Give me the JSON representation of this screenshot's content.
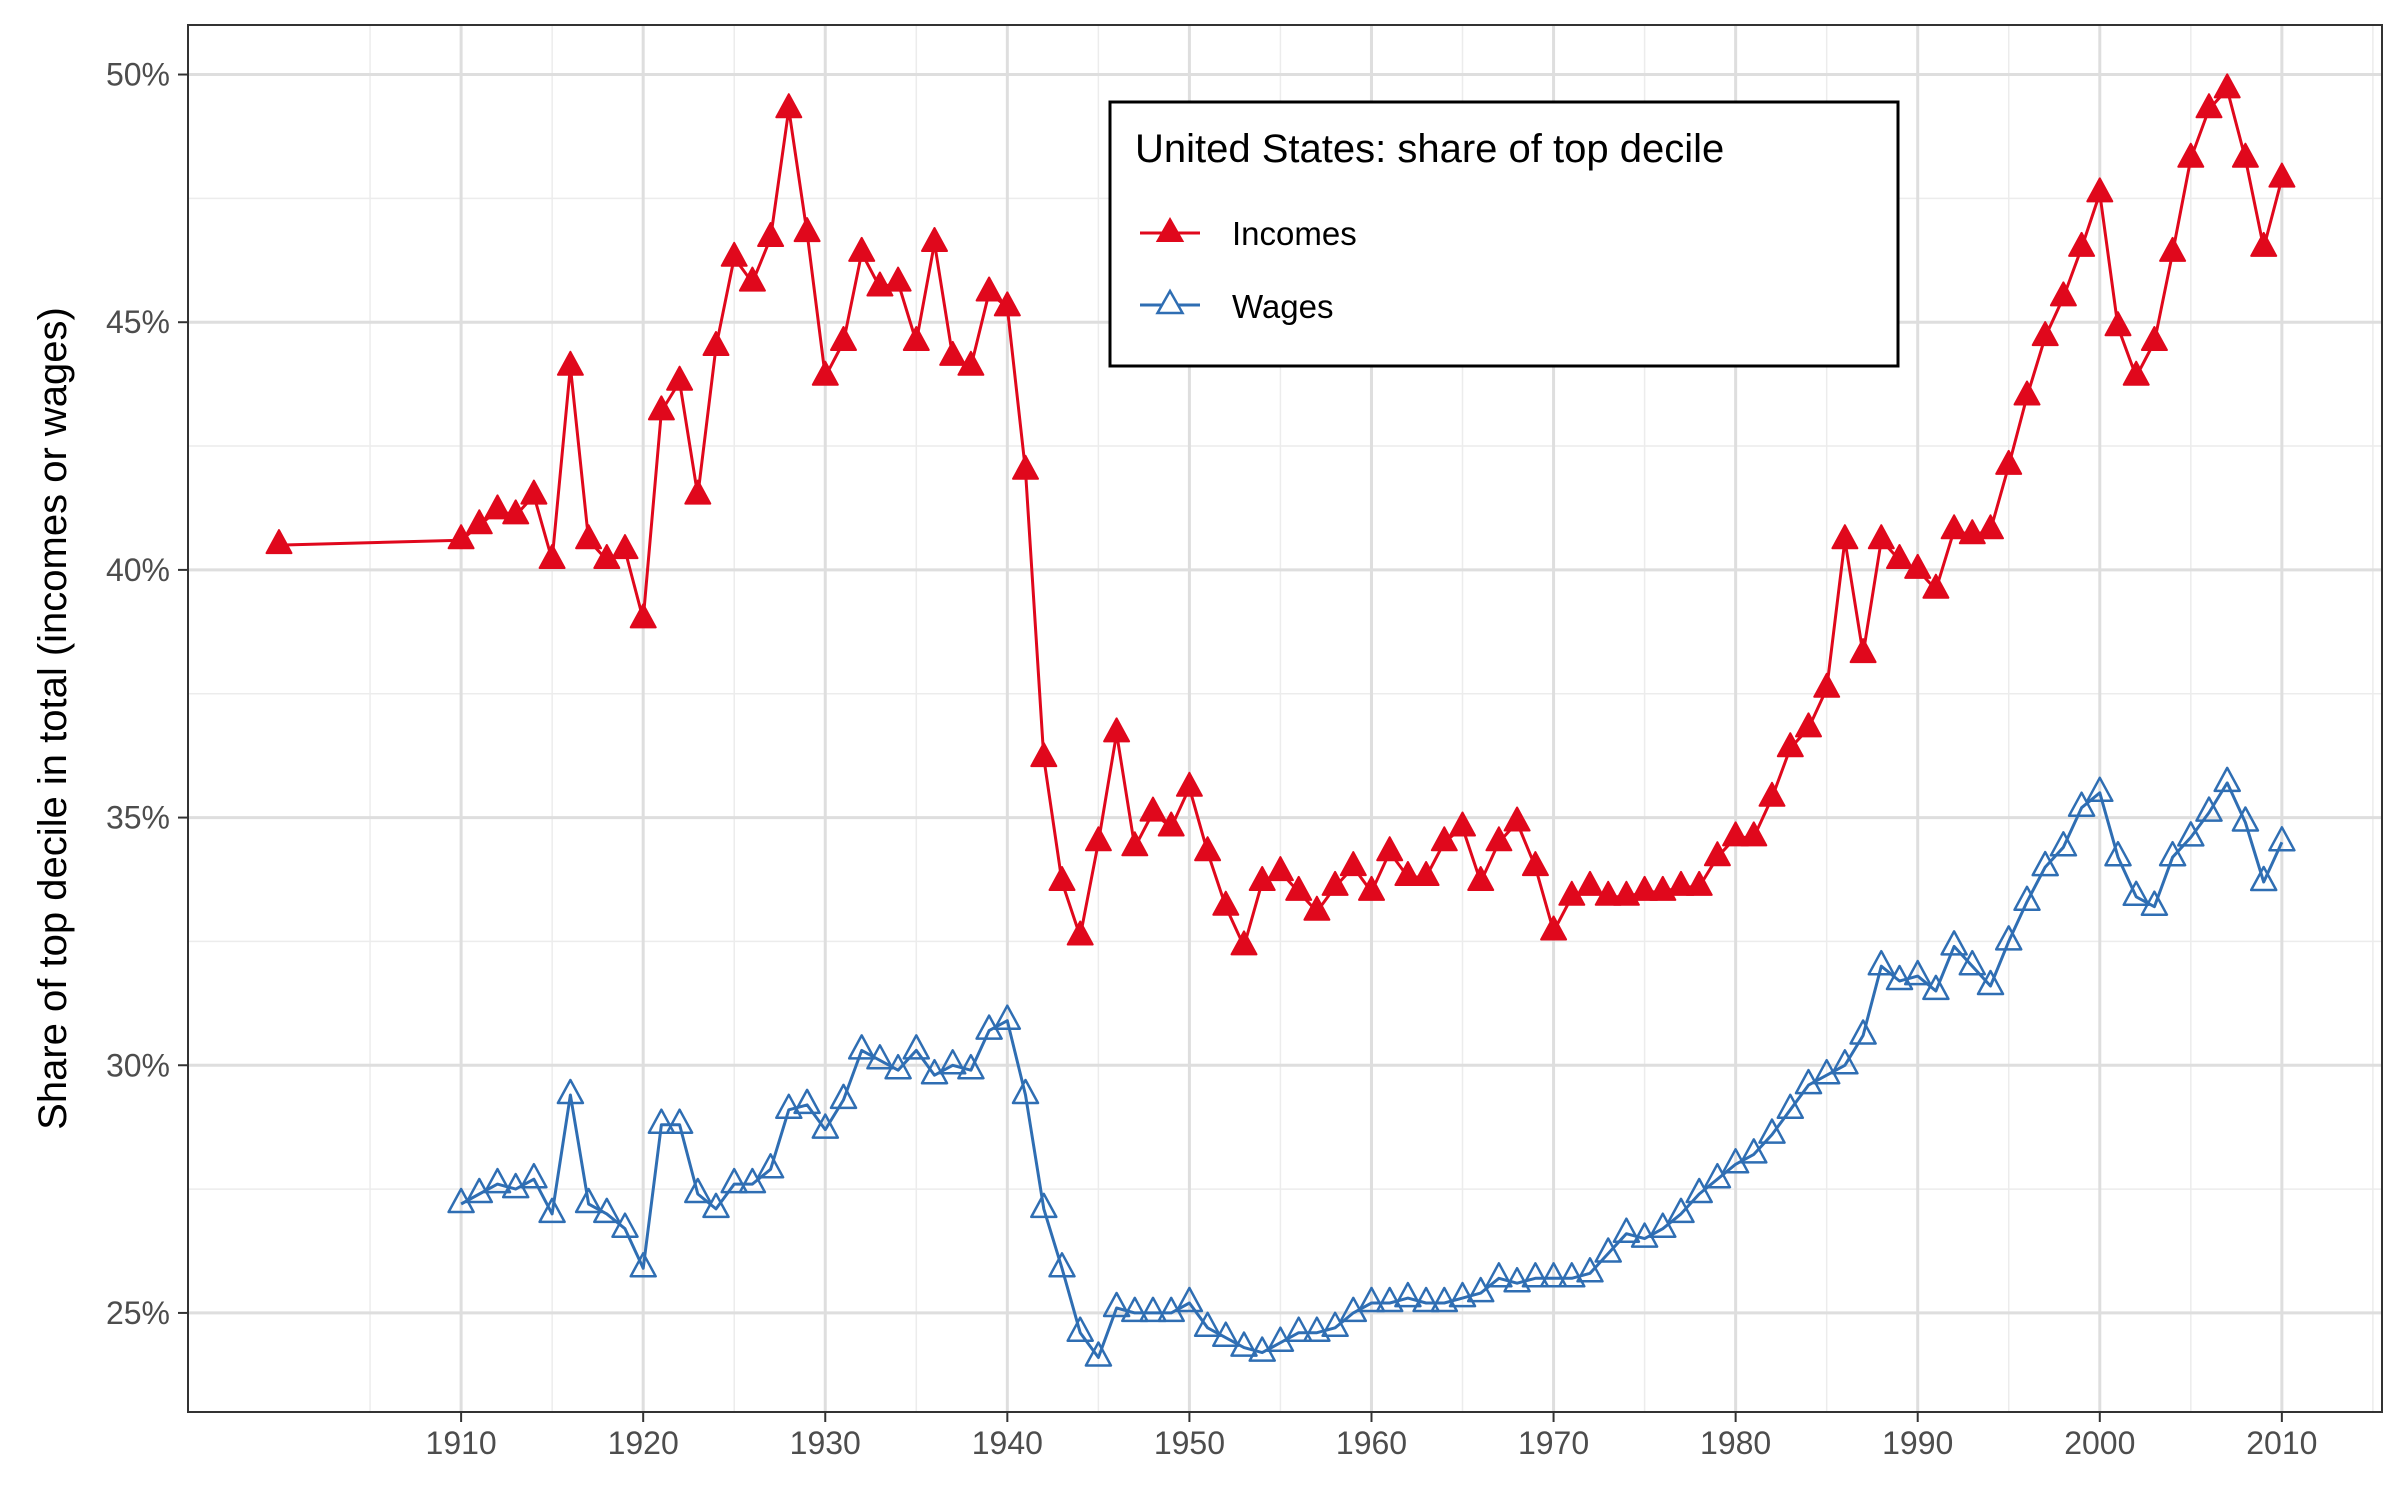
{
  "chart_data": {
    "type": "line",
    "title": "",
    "xlabel": "",
    "ylabel": "Share of top decile in total (incomes or wages)",
    "x_ticks": [
      1910,
      1920,
      1930,
      1940,
      1950,
      1960,
      1970,
      1980,
      1990,
      2000,
      2010
    ],
    "x_tick_labels": [
      "1910",
      "1920",
      "1930",
      "1940",
      "1950",
      "1960",
      "1970",
      "1980",
      "1990",
      "2000",
      "2010"
    ],
    "y_ticks": [
      25,
      30,
      35,
      40,
      45,
      50
    ],
    "y_tick_labels": [
      "25%",
      "30%",
      "35%",
      "40%",
      "45%",
      "50%"
    ],
    "xlim": [
      1895,
      2015.5
    ],
    "ylim": [
      23,
      51
    ],
    "grid": true,
    "legend": {
      "title": "United States: share of top decile",
      "placement": "top-center",
      "entries": [
        "Incomes",
        "Wages"
      ]
    },
    "series": [
      {
        "name": "Incomes",
        "color": "#e0081c",
        "marker": "filled-triangle",
        "points": [
          [
            1900,
            40.5
          ],
          [
            1910,
            40.6
          ],
          [
            1911,
            40.9
          ],
          [
            1912,
            41.2
          ],
          [
            1913,
            41.1
          ],
          [
            1914,
            41.5
          ],
          [
            1915,
            40.2
          ],
          [
            1916,
            44.1
          ],
          [
            1917,
            40.6
          ],
          [
            1918,
            40.2
          ],
          [
            1919,
            40.4
          ],
          [
            1920,
            39.0
          ],
          [
            1921,
            43.2
          ],
          [
            1922,
            43.8
          ],
          [
            1923,
            41.5
          ],
          [
            1924,
            44.5
          ],
          [
            1925,
            46.3
          ],
          [
            1926,
            45.8
          ],
          [
            1927,
            46.7
          ],
          [
            1928,
            49.3
          ],
          [
            1929,
            46.8
          ],
          [
            1930,
            43.9
          ],
          [
            1931,
            44.6
          ],
          [
            1932,
            46.4
          ],
          [
            1933,
            45.7
          ],
          [
            1934,
            45.8
          ],
          [
            1935,
            44.6
          ],
          [
            1936,
            46.6
          ],
          [
            1937,
            44.3
          ],
          [
            1938,
            44.1
          ],
          [
            1939,
            45.6
          ],
          [
            1940,
            45.3
          ],
          [
            1941,
            42.0
          ],
          [
            1942,
            36.2
          ],
          [
            1943,
            33.7
          ],
          [
            1944,
            32.6
          ],
          [
            1945,
            34.5
          ],
          [
            1946,
            36.7
          ],
          [
            1947,
            34.4
          ],
          [
            1948,
            35.1
          ],
          [
            1949,
            34.8
          ],
          [
            1950,
            35.6
          ],
          [
            1951,
            34.3
          ],
          [
            1952,
            33.2
          ],
          [
            1953,
            32.4
          ],
          [
            1954,
            33.7
          ],
          [
            1955,
            33.9
          ],
          [
            1956,
            33.5
          ],
          [
            1957,
            33.1
          ],
          [
            1958,
            33.6
          ],
          [
            1959,
            34.0
          ],
          [
            1960,
            33.5
          ],
          [
            1961,
            34.3
          ],
          [
            1962,
            33.8
          ],
          [
            1963,
            33.8
          ],
          [
            1964,
            34.5
          ],
          [
            1965,
            34.8
          ],
          [
            1966,
            33.7
          ],
          [
            1967,
            34.5
          ],
          [
            1968,
            34.9
          ],
          [
            1969,
            34.0
          ],
          [
            1970,
            32.7
          ],
          [
            1971,
            33.4
          ],
          [
            1972,
            33.6
          ],
          [
            1973,
            33.4
          ],
          [
            1974,
            33.4
          ],
          [
            1975,
            33.5
          ],
          [
            1976,
            33.5
          ],
          [
            1977,
            33.6
          ],
          [
            1978,
            33.6
          ],
          [
            1979,
            34.2
          ],
          [
            1980,
            34.6
          ],
          [
            1981,
            34.6
          ],
          [
            1982,
            35.4
          ],
          [
            1983,
            36.4
          ],
          [
            1984,
            36.8
          ],
          [
            1985,
            37.6
          ],
          [
            1986,
            40.6
          ],
          [
            1987,
            38.3
          ],
          [
            1988,
            40.6
          ],
          [
            1989,
            40.2
          ],
          [
            1990,
            40.0
          ],
          [
            1991,
            39.6
          ],
          [
            1992,
            40.8
          ],
          [
            1993,
            40.7
          ],
          [
            1994,
            40.8
          ],
          [
            1995,
            42.1
          ],
          [
            1996,
            43.5
          ],
          [
            1997,
            44.7
          ],
          [
            1998,
            45.5
          ],
          [
            1999,
            46.5
          ],
          [
            2000,
            47.6
          ],
          [
            2001,
            44.9
          ],
          [
            2002,
            43.9
          ],
          [
            2003,
            44.6
          ],
          [
            2004,
            46.4
          ],
          [
            2005,
            48.3
          ],
          [
            2006,
            49.3
          ],
          [
            2007,
            49.7
          ],
          [
            2008,
            48.3
          ],
          [
            2009,
            46.5
          ],
          [
            2010,
            47.9
          ]
        ]
      },
      {
        "name": "Wages",
        "color": "#2f6eb3",
        "marker": "open-triangle",
        "points": [
          [
            1910,
            27.2
          ],
          [
            1911,
            27.4
          ],
          [
            1912,
            27.6
          ],
          [
            1913,
            27.5
          ],
          [
            1914,
            27.7
          ],
          [
            1915,
            27.0
          ],
          [
            1916,
            29.4
          ],
          [
            1917,
            27.2
          ],
          [
            1918,
            27.0
          ],
          [
            1919,
            26.7
          ],
          [
            1920,
            25.9
          ],
          [
            1921,
            28.8
          ],
          [
            1922,
            28.8
          ],
          [
            1923,
            27.4
          ],
          [
            1924,
            27.1
          ],
          [
            1925,
            27.6
          ],
          [
            1926,
            27.6
          ],
          [
            1927,
            27.9
          ],
          [
            1928,
            29.1
          ],
          [
            1929,
            29.2
          ],
          [
            1930,
            28.7
          ],
          [
            1931,
            29.3
          ],
          [
            1932,
            30.3
          ],
          [
            1933,
            30.1
          ],
          [
            1934,
            29.9
          ],
          [
            1935,
            30.3
          ],
          [
            1936,
            29.8
          ],
          [
            1937,
            30.0
          ],
          [
            1938,
            29.9
          ],
          [
            1939,
            30.7
          ],
          [
            1940,
            30.9
          ],
          [
            1941,
            29.4
          ],
          [
            1942,
            27.1
          ],
          [
            1943,
            25.9
          ],
          [
            1944,
            24.6
          ],
          [
            1945,
            24.1
          ],
          [
            1946,
            25.1
          ],
          [
            1947,
            25.0
          ],
          [
            1948,
            25.0
          ],
          [
            1949,
            25.0
          ],
          [
            1950,
            25.2
          ],
          [
            1951,
            24.7
          ],
          [
            1952,
            24.5
          ],
          [
            1953,
            24.3
          ],
          [
            1954,
            24.2
          ],
          [
            1955,
            24.4
          ],
          [
            1956,
            24.6
          ],
          [
            1957,
            24.6
          ],
          [
            1958,
            24.7
          ],
          [
            1959,
            25.0
          ],
          [
            1960,
            25.2
          ],
          [
            1961,
            25.2
          ],
          [
            1962,
            25.3
          ],
          [
            1963,
            25.2
          ],
          [
            1964,
            25.2
          ],
          [
            1965,
            25.3
          ],
          [
            1966,
            25.4
          ],
          [
            1967,
            25.7
          ],
          [
            1968,
            25.6
          ],
          [
            1969,
            25.7
          ],
          [
            1970,
            25.7
          ],
          [
            1971,
            25.7
          ],
          [
            1972,
            25.8
          ],
          [
            1973,
            26.2
          ],
          [
            1974,
            26.6
          ],
          [
            1975,
            26.5
          ],
          [
            1976,
            26.7
          ],
          [
            1977,
            27.0
          ],
          [
            1978,
            27.4
          ],
          [
            1979,
            27.7
          ],
          [
            1980,
            28.0
          ],
          [
            1981,
            28.2
          ],
          [
            1982,
            28.6
          ],
          [
            1983,
            29.1
          ],
          [
            1984,
            29.6
          ],
          [
            1985,
            29.8
          ],
          [
            1986,
            30.0
          ],
          [
            1987,
            30.6
          ],
          [
            1988,
            32.0
          ],
          [
            1989,
            31.7
          ],
          [
            1990,
            31.8
          ],
          [
            1991,
            31.5
          ],
          [
            1992,
            32.4
          ],
          [
            1993,
            32.0
          ],
          [
            1994,
            31.6
          ],
          [
            1995,
            32.5
          ],
          [
            1996,
            33.3
          ],
          [
            1997,
            34.0
          ],
          [
            1998,
            34.4
          ],
          [
            1999,
            35.2
          ],
          [
            2000,
            35.5
          ],
          [
            2001,
            34.2
          ],
          [
            2002,
            33.4
          ],
          [
            2003,
            33.2
          ],
          [
            2004,
            34.2
          ],
          [
            2005,
            34.6
          ],
          [
            2006,
            35.1
          ],
          [
            2007,
            35.7
          ],
          [
            2008,
            34.9
          ],
          [
            2009,
            33.7
          ],
          [
            2010,
            34.5
          ]
        ]
      }
    ]
  }
}
